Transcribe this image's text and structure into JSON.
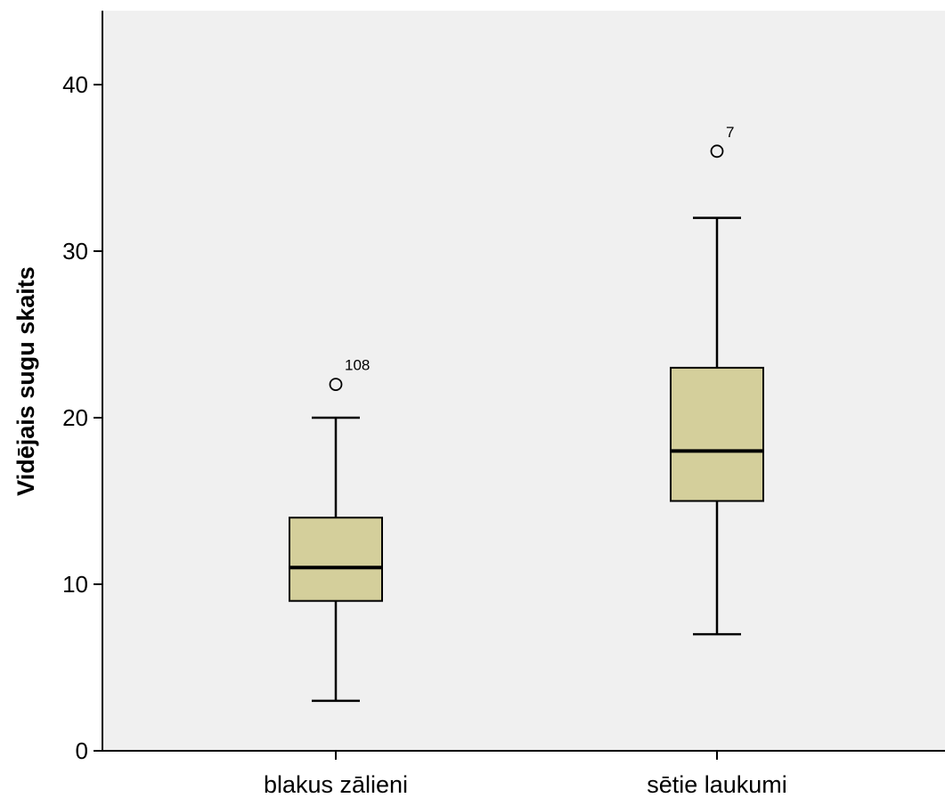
{
  "chart_data": {
    "type": "boxplot",
    "ylabel": "Vidējais sugu skaits",
    "xlabel": "",
    "ylim": [
      0,
      44
    ],
    "yticks": [
      0,
      10,
      20,
      30,
      40
    ],
    "categories": [
      "blakus zālieni",
      "sētie laukumi"
    ],
    "boxes": [
      {
        "category": "blakus zālieni",
        "whisker_low": 3,
        "q1": 9,
        "median": 11,
        "q3": 14,
        "whisker_high": 20,
        "outliers": [
          {
            "value": 22,
            "label": "108"
          }
        ]
      },
      {
        "category": "sētie laukumi",
        "whisker_low": 7,
        "q1": 15,
        "median": 18,
        "q3": 23,
        "whisker_high": 32,
        "outliers": [
          {
            "value": 36,
            "label": "7"
          }
        ]
      }
    ],
    "colors": {
      "plot_background": "#f0f0f0",
      "box_fill": "#d4cf9b",
      "stroke": "#000000"
    },
    "grid": false
  }
}
